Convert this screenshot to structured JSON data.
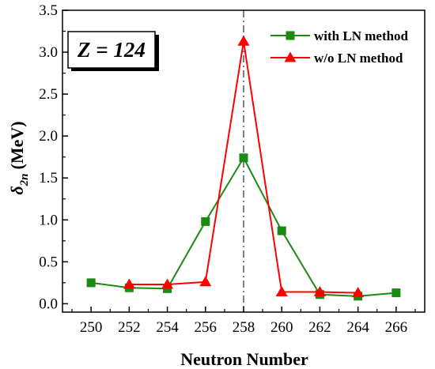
{
  "chart_data": {
    "type": "line",
    "xlabel": "Neutron Number",
    "ylabel_main": "δ",
    "ylabel_sub": "2n",
    "ylabel_unit": "(MeV)",
    "xlim": [
      248.5,
      267.5
    ],
    "ylim": [
      -0.1,
      3.5
    ],
    "x_ticks": [
      250,
      252,
      254,
      256,
      258,
      260,
      262,
      264,
      266
    ],
    "y_ticks": [
      0.0,
      0.5,
      1.0,
      1.5,
      2.0,
      2.5,
      3.0,
      3.5
    ],
    "y_tick_labels": [
      "0.0",
      "0.5",
      "1.0",
      "1.5",
      "2.0",
      "2.5",
      "3.0",
      "3.5"
    ],
    "vline_x": 258,
    "annotation": "Z = 124",
    "legend_position": "top-right",
    "grid": false,
    "series": [
      {
        "name": "with LN method",
        "color": "#1a8a12",
        "marker": "square",
        "x": [
          250,
          252,
          254,
          256,
          258,
          260,
          262,
          264,
          266
        ],
        "y": [
          0.25,
          0.19,
          0.18,
          0.98,
          1.74,
          0.87,
          0.11,
          0.09,
          0.13
        ]
      },
      {
        "name": "w/o LN method",
        "color": "#ff0000",
        "marker": "triangle",
        "x": [
          252,
          254,
          256,
          258,
          260,
          262,
          264
        ],
        "y": [
          0.23,
          0.23,
          0.26,
          3.13,
          0.14,
          0.14,
          0.13
        ]
      }
    ]
  }
}
